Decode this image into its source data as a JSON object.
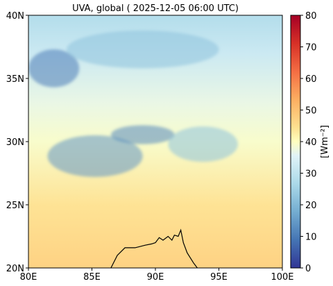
{
  "chart_data": {
    "type": "heatmap",
    "title": "UVA, global ( 2025-12-05 06:00 UTC)",
    "x_axis": {
      "range": [
        80,
        100
      ],
      "ticks": [
        80,
        85,
        90,
        95,
        100
      ],
      "tick_labels": [
        "80E",
        "85E",
        "90E",
        "95E",
        "100E"
      ]
    },
    "y_axis": {
      "range": [
        20,
        40
      ],
      "ticks": [
        20,
        25,
        30,
        35,
        40
      ],
      "tick_labels": [
        "20N",
        "25N",
        "30N",
        "35N",
        "40N"
      ]
    },
    "colorbar": {
      "label": "[Wm⁻²]",
      "range": [
        0,
        80
      ],
      "ticks": [
        0,
        10,
        20,
        30,
        40,
        50,
        60,
        70,
        80
      ],
      "tick_labels": [
        "0",
        "10",
        "20",
        "30",
        "40",
        "50",
        "60",
        "70",
        "80"
      ],
      "colormap": "RdYlBu_r"
    },
    "field_description": {
      "gradient_rows": [
        {
          "lat": 40,
          "value": 28
        },
        {
          "lat": 37,
          "value": 32
        },
        {
          "lat": 33,
          "value": 37
        },
        {
          "lat": 30,
          "value": 39
        },
        {
          "lat": 25,
          "value": 44
        },
        {
          "lat": 20,
          "value": 47
        }
      ],
      "low_value_regions": [
        {
          "lon_range": [
            80.0,
            84.0
          ],
          "lat_range": [
            34.3,
            37.3
          ],
          "value": 10
        },
        {
          "lon_range": [
            83.0,
            95.0
          ],
          "lat_range": [
            35.8,
            38.8
          ],
          "value": 22
        },
        {
          "lon_range": [
            81.5,
            89.0
          ],
          "lat_range": [
            27.2,
            30.5
          ],
          "value": 14
        },
        {
          "lon_range": [
            86.5,
            91.5
          ],
          "lat_range": [
            29.8,
            31.3
          ],
          "value": 12
        },
        {
          "lon_range": [
            91.0,
            96.5
          ],
          "lat_range": [
            28.4,
            31.2
          ],
          "value": 22
        }
      ]
    },
    "coastline": {
      "points": [
        [
          86.5,
          20.0
        ],
        [
          87.0,
          21.0
        ],
        [
          87.6,
          21.6
        ],
        [
          88.4,
          21.6
        ],
        [
          89.2,
          21.8
        ],
        [
          89.7,
          21.9
        ],
        [
          90.0,
          22.0
        ],
        [
          90.3,
          22.4
        ],
        [
          90.6,
          22.2
        ],
        [
          91.0,
          22.5
        ],
        [
          91.3,
          22.2
        ],
        [
          91.5,
          22.6
        ],
        [
          91.8,
          22.5
        ],
        [
          92.0,
          23.0
        ],
        [
          92.2,
          22.0
        ],
        [
          92.5,
          21.2
        ],
        [
          93.0,
          20.4
        ],
        [
          93.3,
          20.0
        ]
      ]
    }
  }
}
